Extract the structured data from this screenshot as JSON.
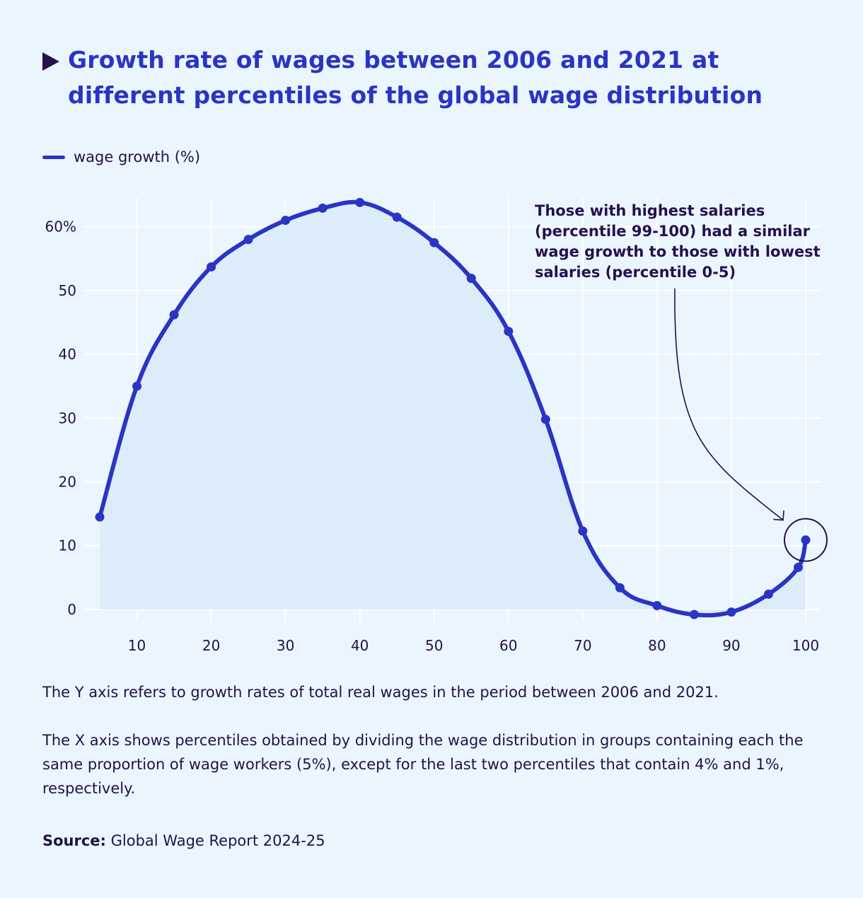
{
  "title": "Growth rate of wages between 2006 and 2021 at different percentiles of the global wage distribution",
  "legend_label": "wage growth (%)",
  "annotation": "Those with highest salaries (percentile 99-100) had a similar wage growth to those with lowest salaries (percentile 0-5)",
  "notes": {
    "y_axis": "The Y axis refers to growth rates of total real wages in the period between 2006 and 2021.",
    "x_axis": "The X axis shows percentiles obtained by dividing the wage distribution in groups containing each the same proportion of wage workers (5%), except for the last two percentiles that contain 4% and 1%, respectively."
  },
  "source": {
    "label": "Source:",
    "text": "Global Wage Report 2024-25"
  },
  "colors": {
    "line": "#2a35c4",
    "fill": "#dcebfa",
    "background": "#ebf5fd",
    "grid": "#ffffff",
    "text": "#21124a"
  },
  "chart_data": {
    "type": "area",
    "series": [
      {
        "name": "wage growth (%)",
        "x": [
          5,
          10,
          15,
          20,
          25,
          30,
          35,
          40,
          45,
          50,
          55,
          60,
          65,
          70,
          75,
          80,
          85,
          90,
          95,
          99,
          100
        ],
        "values": [
          14.5,
          35,
          46.2,
          53.7,
          58,
          61,
          62.9,
          63.8,
          61.5,
          57.5,
          51.9,
          43.6,
          29.8,
          12.3,
          3.4,
          0.6,
          -0.8,
          -0.4,
          2.4,
          6.6,
          10.9
        ]
      }
    ],
    "x_ticks": [
      10,
      20,
      30,
      40,
      50,
      60,
      70,
      80,
      90,
      100
    ],
    "y_ticks": [
      0,
      10,
      20,
      30,
      40,
      50,
      60
    ],
    "y_tick_labels": [
      "0",
      "10",
      "20",
      "30",
      "40",
      "50",
      "60%"
    ],
    "xlim": [
      3,
      102
    ],
    "ylim": [
      -2,
      64.5
    ],
    "highlight_x": 100,
    "grid": true
  }
}
